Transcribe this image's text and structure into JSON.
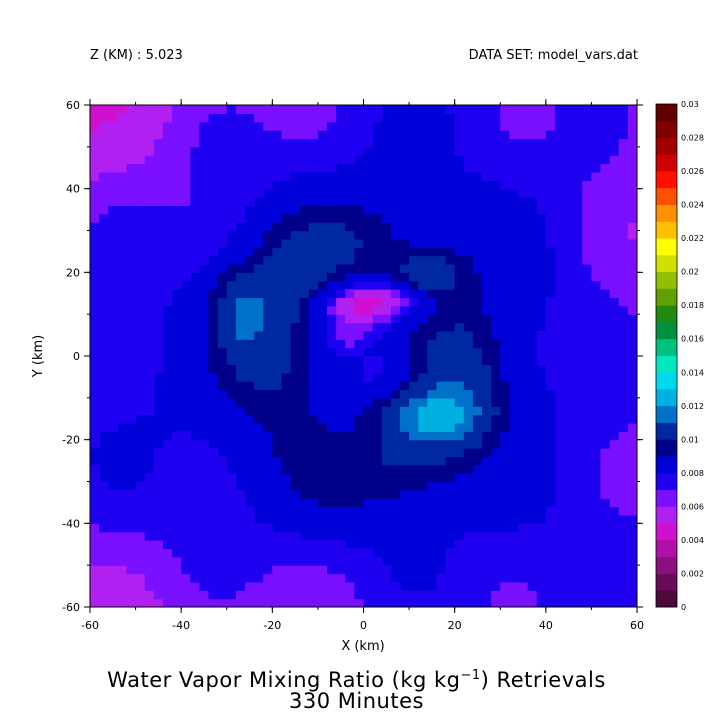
{
  "header": {
    "z_label": "Z (KM) : 5.023",
    "dataset_label": "DATA SET: model_vars.dat"
  },
  "chart_data": {
    "type": "heatmap",
    "title_prefix": "Water Vapor Mixing Ratio (kg kg",
    "title_exponent": "−1",
    "title_suffix": ") Retrievals",
    "subtitle": "330 Minutes",
    "xlabel": "X (km)",
    "ylabel": "Y (km)",
    "xlim": [
      -60,
      60
    ],
    "ylim": [
      -60,
      60
    ],
    "xticks": [
      -60,
      -40,
      -20,
      0,
      20,
      40,
      60
    ],
    "yticks": [
      -60,
      -40,
      -20,
      0,
      20,
      40,
      60
    ],
    "colorbar": {
      "range": [
        0,
        0.03
      ],
      "step": 0.002,
      "tick_labels": [
        "0",
        "0.002",
        "0.004",
        "0.006",
        "0.008",
        "0.01",
        "0.012",
        "0.014",
        "0.016",
        "0.018",
        "0.02",
        "0.022",
        "0.024",
        "0.026",
        "0.028",
        "0.03"
      ],
      "colors": [
        "#4a0a3a",
        "#6a0a5a",
        "#8a1080",
        "#b010a8",
        "#d010d0",
        "#b020f0",
        "#7a10ff",
        "#2000f0",
        "#0000d8",
        "#00008a",
        "#0028a0",
        "#0070c8",
        "#00b0e0",
        "#00d8f0",
        "#00e8c0",
        "#00c080",
        "#009040",
        "#208a10",
        "#60a000",
        "#90c000",
        "#d0e000",
        "#ffff00",
        "#ffc000",
        "#ff9000",
        "#ff5000",
        "#ff1000",
        "#d00000",
        "#a00000",
        "#800000",
        "#600000"
      ]
    },
    "levels": [
      {
        "value": 0.0082,
        "color": "#0000d8"
      },
      {
        "value": 0.0092,
        "color": "#00008a"
      },
      {
        "value": 0.0102,
        "color": "#0028a0"
      },
      {
        "value": 0.0118,
        "color": "#0070c8"
      },
      {
        "value": 0.013,
        "color": "#00b0e0"
      }
    ],
    "low_levels": [
      {
        "value": 0.0078,
        "color": "#2000f0"
      },
      {
        "value": 0.007,
        "color": "#7a10ff"
      },
      {
        "value": 0.0062,
        "color": "#b020f0"
      },
      {
        "value": 0.0052,
        "color": "#d010d0"
      }
    ]
  }
}
